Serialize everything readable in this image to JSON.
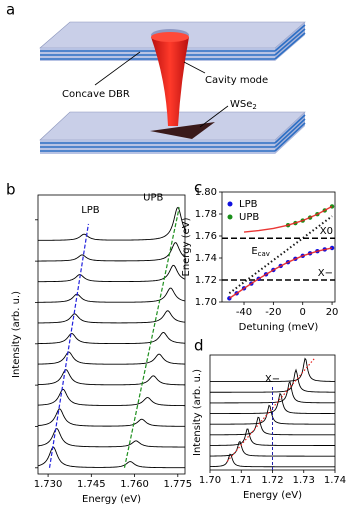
{
  "panel_labels": [
    "a",
    "b",
    "c",
    "d"
  ],
  "diagram": {
    "dbr_label": "Concave DBR",
    "mode_label": "Cavity mode",
    "material_label": {
      "text": "WSe",
      "sub": "2"
    }
  },
  "chart_data": [
    {
      "type": "spectra",
      "xlabel": "Energy (eV)",
      "ylabel": "Intensity (arb. u.)",
      "xlim": [
        1.7265,
        1.7775
      ],
      "xticks": [
        {
          "value": 1.73,
          "label": "1.730"
        },
        1.745,
        {
          "value": 1.76,
          "label": "1.760"
        },
        1.775
      ],
      "ylim": [
        -0.3,
        13.2
      ],
      "yticks": [
        0,
        2,
        4,
        6,
        8,
        10,
        12
      ],
      "offsets": [
        0,
        1,
        2,
        3,
        4,
        5,
        6,
        7,
        8,
        9,
        10,
        11
      ],
      "series": [
        {
          "name": "LPB",
          "color": "#2222dd",
          "energies": [
            1.7318,
            1.733,
            1.734,
            1.7352,
            1.7362,
            1.7372,
            1.7382,
            1.7392,
            1.74,
            1.741,
            1.7418,
            1.7425
          ],
          "amplitudes": [
            1.0,
            0.9,
            0.85,
            0.8,
            0.75,
            0.6,
            0.5,
            0.45,
            0.4,
            0.35,
            0.3,
            0.3
          ],
          "guide": {
            "x": [
              1.7305,
              1.744
            ],
            "y": [
              0,
              11.8
            ]
          }
        },
        {
          "name": "UPB",
          "color": "#1e8f1e",
          "energies": [
            1.7585,
            1.7605,
            1.7625,
            1.7645,
            1.7665,
            1.7685,
            1.77,
            1.7715,
            1.7725,
            1.7735,
            1.7742,
            1.775
          ],
          "amplitudes": [
            0.3,
            0.3,
            0.35,
            0.4,
            0.45,
            0.5,
            0.55,
            0.6,
            0.7,
            0.8,
            0.9,
            1.6
          ],
          "guide": {
            "x": [
              1.7565,
              1.7755
            ],
            "y": [
              0,
              12.6
            ]
          }
        }
      ]
    },
    {
      "type": "line",
      "xlabel": "Detuning (meV)",
      "ylabel": "Energy (eV)",
      "xlim": [
        -55,
        22
      ],
      "xticks": [
        -40,
        -20,
        0,
        20
      ],
      "ylim": [
        1.7,
        1.8
      ],
      "yticks": [
        {
          "value": 1.7,
          "label": "1.70"
        },
        1.72,
        1.74,
        1.76,
        1.78,
        {
          "value": 1.8,
          "label": "1.80"
        }
      ],
      "legend": "upper left",
      "series": [
        {
          "name": "LPB",
          "color": "#1010e0",
          "style": "markers",
          "x": [
            -50,
            -45,
            -40,
            -35,
            -30,
            -25,
            -20,
            -15,
            -10,
            -5,
            0,
            5,
            10,
            15,
            20
          ],
          "values": [
            1.7033,
            1.7079,
            1.7124,
            1.7168,
            1.7211,
            1.7252,
            1.7291,
            1.7328,
            1.7362,
            1.7393,
            1.742,
            1.7443,
            1.7462,
            1.7478,
            1.7491
          ]
        },
        {
          "name": "UPB",
          "color": "#1a8f1a",
          "style": "markers",
          "x": [
            -10,
            -5,
            0,
            5,
            10,
            15,
            20
          ],
          "values": [
            1.7698,
            1.7717,
            1.774,
            1.7767,
            1.7798,
            1.7832,
            1.7869
          ]
        },
        {
          "color": "#e8211f",
          "style": "solid",
          "x": [
            -50,
            -40,
            -30,
            -20,
            -10,
            0,
            10,
            20
          ],
          "values": [
            1.7033,
            1.7124,
            1.7211,
            1.7291,
            1.7362,
            1.742,
            1.7462,
            1.7491
          ]
        },
        {
          "color": "#e8211f",
          "style": "solid",
          "x": [
            -40,
            -30,
            -20,
            -10,
            0,
            10,
            20
          ],
          "values": [
            1.7636,
            1.7649,
            1.7669,
            1.7698,
            1.774,
            1.7798,
            1.7869
          ]
        },
        {
          "color": "#000000",
          "style": "dotted",
          "label": {
            "text": "E",
            "sub": "cav"
          },
          "x": [
            -50,
            20
          ],
          "values": [
            1.708,
            1.778
          ]
        }
      ],
      "hlines": [
        {
          "y": 1.758,
          "label": "X0"
        },
        {
          "y": 1.72,
          "label": "X−"
        }
      ]
    },
    {
      "type": "spectra",
      "xlabel": "Energy (eV)",
      "ylabel": "Intensity (arb. u.)",
      "xlim": [
        1.7,
        1.74
      ],
      "xticks": [
        {
          "value": 1.7,
          "label": "1.70"
        },
        1.71,
        1.72,
        1.73,
        1.74
      ],
      "ylim": [
        -0.3,
        10.5
      ],
      "offsets": [
        0,
        1,
        2,
        3,
        4,
        5,
        6,
        7,
        8
      ],
      "series": [
        {
          "color": "#e8211f",
          "energies": [
            1.7065,
            1.7095,
            1.712,
            1.7155,
            1.719,
            1.7225,
            1.7255,
            1.7275,
            1.7305
          ],
          "amplitudes": [
            1.2,
            1.4,
            1.6,
            1.7,
            1.8,
            1.9,
            2.0,
            2.1,
            2.2
          ],
          "guide": {
            "x": [
              1.7055,
              1.7335
            ],
            "y": [
              0.5,
              10.2
            ]
          }
        }
      ],
      "vlines": [
        {
          "x": 1.72,
          "label": "X−",
          "color": "#2222aa"
        }
      ]
    }
  ]
}
